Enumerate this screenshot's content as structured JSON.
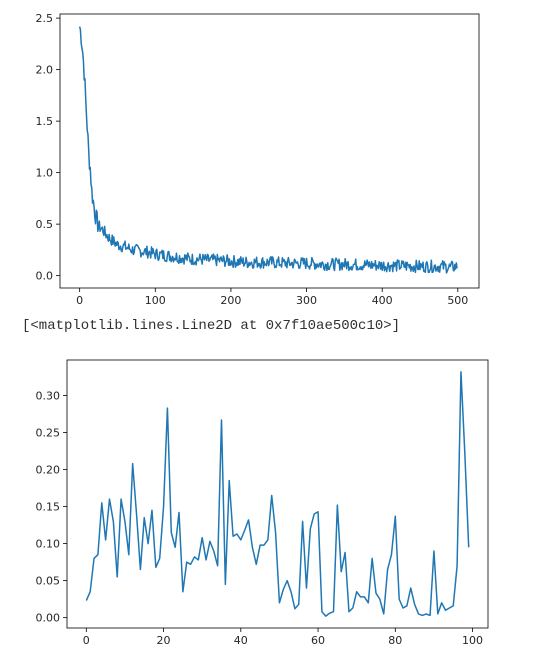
{
  "output_repr": "[<matplotlib.lines.Line2D at 0x7f10ae500c10>]",
  "chart_data": [
    {
      "type": "line",
      "title": "",
      "xlabel": "",
      "ylabel": "",
      "xlim": [
        -26,
        528
      ],
      "ylim": [
        -0.12,
        2.54
      ],
      "xticks": [
        "0",
        "100",
        "200",
        "300",
        "400",
        "500"
      ],
      "yticks": [
        "0.0",
        "0.5",
        "1.0",
        "1.5",
        "2.0",
        "2.5"
      ],
      "grid": false,
      "color": "#1f77b4",
      "n_points": 500,
      "sample_x": [
        0,
        2,
        4,
        6,
        8,
        10,
        12,
        14,
        16,
        18,
        20,
        22,
        25,
        30,
        35,
        40,
        45,
        50,
        60,
        70,
        80,
        90,
        100,
        110,
        120,
        130,
        140,
        150,
        160,
        170,
        180,
        200,
        220,
        250,
        275,
        300,
        330,
        350,
        400,
        450,
        480,
        490,
        499
      ],
      "sample_y": [
        2.42,
        2.33,
        2.18,
        1.98,
        1.7,
        1.45,
        1.18,
        1.05,
        0.82,
        0.72,
        0.63,
        0.55,
        0.48,
        0.45,
        0.4,
        0.36,
        0.33,
        0.3,
        0.28,
        0.25,
        0.24,
        0.23,
        0.21,
        0.2,
        0.19,
        0.18,
        0.17,
        0.16,
        0.16,
        0.15,
        0.15,
        0.14,
        0.13,
        0.13,
        0.12,
        0.12,
        0.11,
        0.11,
        0.1,
        0.09,
        0.09,
        0.08,
        0.09
      ],
      "noise_amplitude": 0.06
    },
    {
      "type": "line",
      "title": "",
      "xlabel": "",
      "ylabel": "",
      "xlim": [
        -5,
        104
      ],
      "ylim": [
        -0.014,
        0.348
      ],
      "xticks": [
        "0",
        "20",
        "40",
        "60",
        "80",
        "100"
      ],
      "yticks": [
        "0.00",
        "0.05",
        "0.10",
        "0.15",
        "0.20",
        "0.25",
        "0.30"
      ],
      "grid": false,
      "color": "#1f77b4",
      "x": [
        0,
        1,
        2,
        3,
        4,
        5,
        6,
        7,
        8,
        9,
        10,
        11,
        12,
        13,
        14,
        15,
        16,
        17,
        18,
        19,
        20,
        21,
        22,
        23,
        24,
        25,
        26,
        27,
        28,
        29,
        30,
        31,
        32,
        33,
        34,
        35,
        36,
        37,
        38,
        39,
        40,
        41,
        42,
        43,
        44,
        45,
        46,
        47,
        48,
        49,
        50,
        51,
        52,
        53,
        54,
        55,
        56,
        57,
        58,
        59,
        60,
        61,
        62,
        63,
        64,
        65,
        66,
        67,
        68,
        69,
        70,
        71,
        72,
        73,
        74,
        75,
        76,
        77,
        78,
        79,
        80,
        81,
        82,
        83,
        84,
        85,
        86,
        87,
        88,
        89,
        90,
        91,
        92,
        93,
        94,
        95,
        96,
        97,
        98,
        99
      ],
      "y": [
        0.023,
        0.035,
        0.08,
        0.085,
        0.155,
        0.105,
        0.16,
        0.13,
        0.055,
        0.16,
        0.13,
        0.085,
        0.208,
        0.14,
        0.065,
        0.135,
        0.1,
        0.145,
        0.068,
        0.08,
        0.15,
        0.283,
        0.115,
        0.095,
        0.142,
        0.035,
        0.075,
        0.072,
        0.082,
        0.078,
        0.108,
        0.078,
        0.103,
        0.09,
        0.07,
        0.267,
        0.045,
        0.185,
        0.11,
        0.113,
        0.105,
        0.118,
        0.132,
        0.095,
        0.072,
        0.098,
        0.098,
        0.105,
        0.165,
        0.115,
        0.02,
        0.038,
        0.05,
        0.035,
        0.012,
        0.018,
        0.13,
        0.04,
        0.12,
        0.14,
        0.143,
        0.008,
        0.002,
        0.006,
        0.008,
        0.152,
        0.062,
        0.088,
        0.008,
        0.013,
        0.035,
        0.028,
        0.028,
        0.02,
        0.08,
        0.033,
        0.025,
        0.005,
        0.065,
        0.085,
        0.137,
        0.025,
        0.013,
        0.016,
        0.04,
        0.018,
        0.005,
        0.003,
        0.005,
        0.003,
        0.09,
        0.005,
        0.02,
        0.01,
        0.013,
        0.016,
        0.07,
        0.332,
        0.222,
        0.095
      ]
    }
  ]
}
